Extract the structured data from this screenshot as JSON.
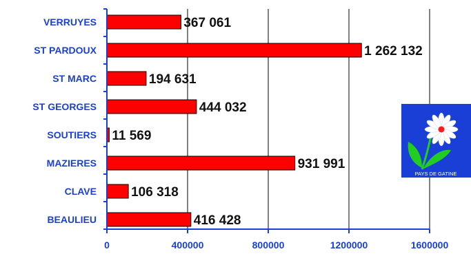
{
  "chart_data": {
    "type": "bar",
    "orientation": "horizontal",
    "categories": [
      "VERRUYES",
      "ST PARDOUX",
      "ST MARC",
      "ST GEORGES",
      "SOUTIERS",
      "MAZIERES",
      "CLAVE",
      "BEAULIEU"
    ],
    "values": [
      367061,
      1262132,
      194631,
      444032,
      11569,
      931991,
      106318,
      416428
    ],
    "value_labels": [
      "367 061",
      "1 262 132",
      "194 631",
      "444 032",
      "11 569",
      "931 991",
      "106 318",
      "416 428"
    ],
    "xticks": [
      "0",
      "400000",
      "800000",
      "1200000",
      "1600000"
    ],
    "xlim": [
      0,
      1600000
    ],
    "title": "",
    "xlabel": "",
    "ylabel": "",
    "grid": "vertical",
    "legend": "none",
    "colors": {
      "bar": "#ff0000",
      "bar_edge": "#000000",
      "axis": "#1a3fd6",
      "labels": "#1a3fd6",
      "grid": "#000000"
    }
  },
  "logo": {
    "caption": "PAYS DE GATINE",
    "icon": "daisy-flower-icon",
    "colors": {
      "background": "#1a3fd6",
      "petals": "#ffffff",
      "center": "#ff1a1a",
      "leaves": "#22cc22"
    }
  }
}
